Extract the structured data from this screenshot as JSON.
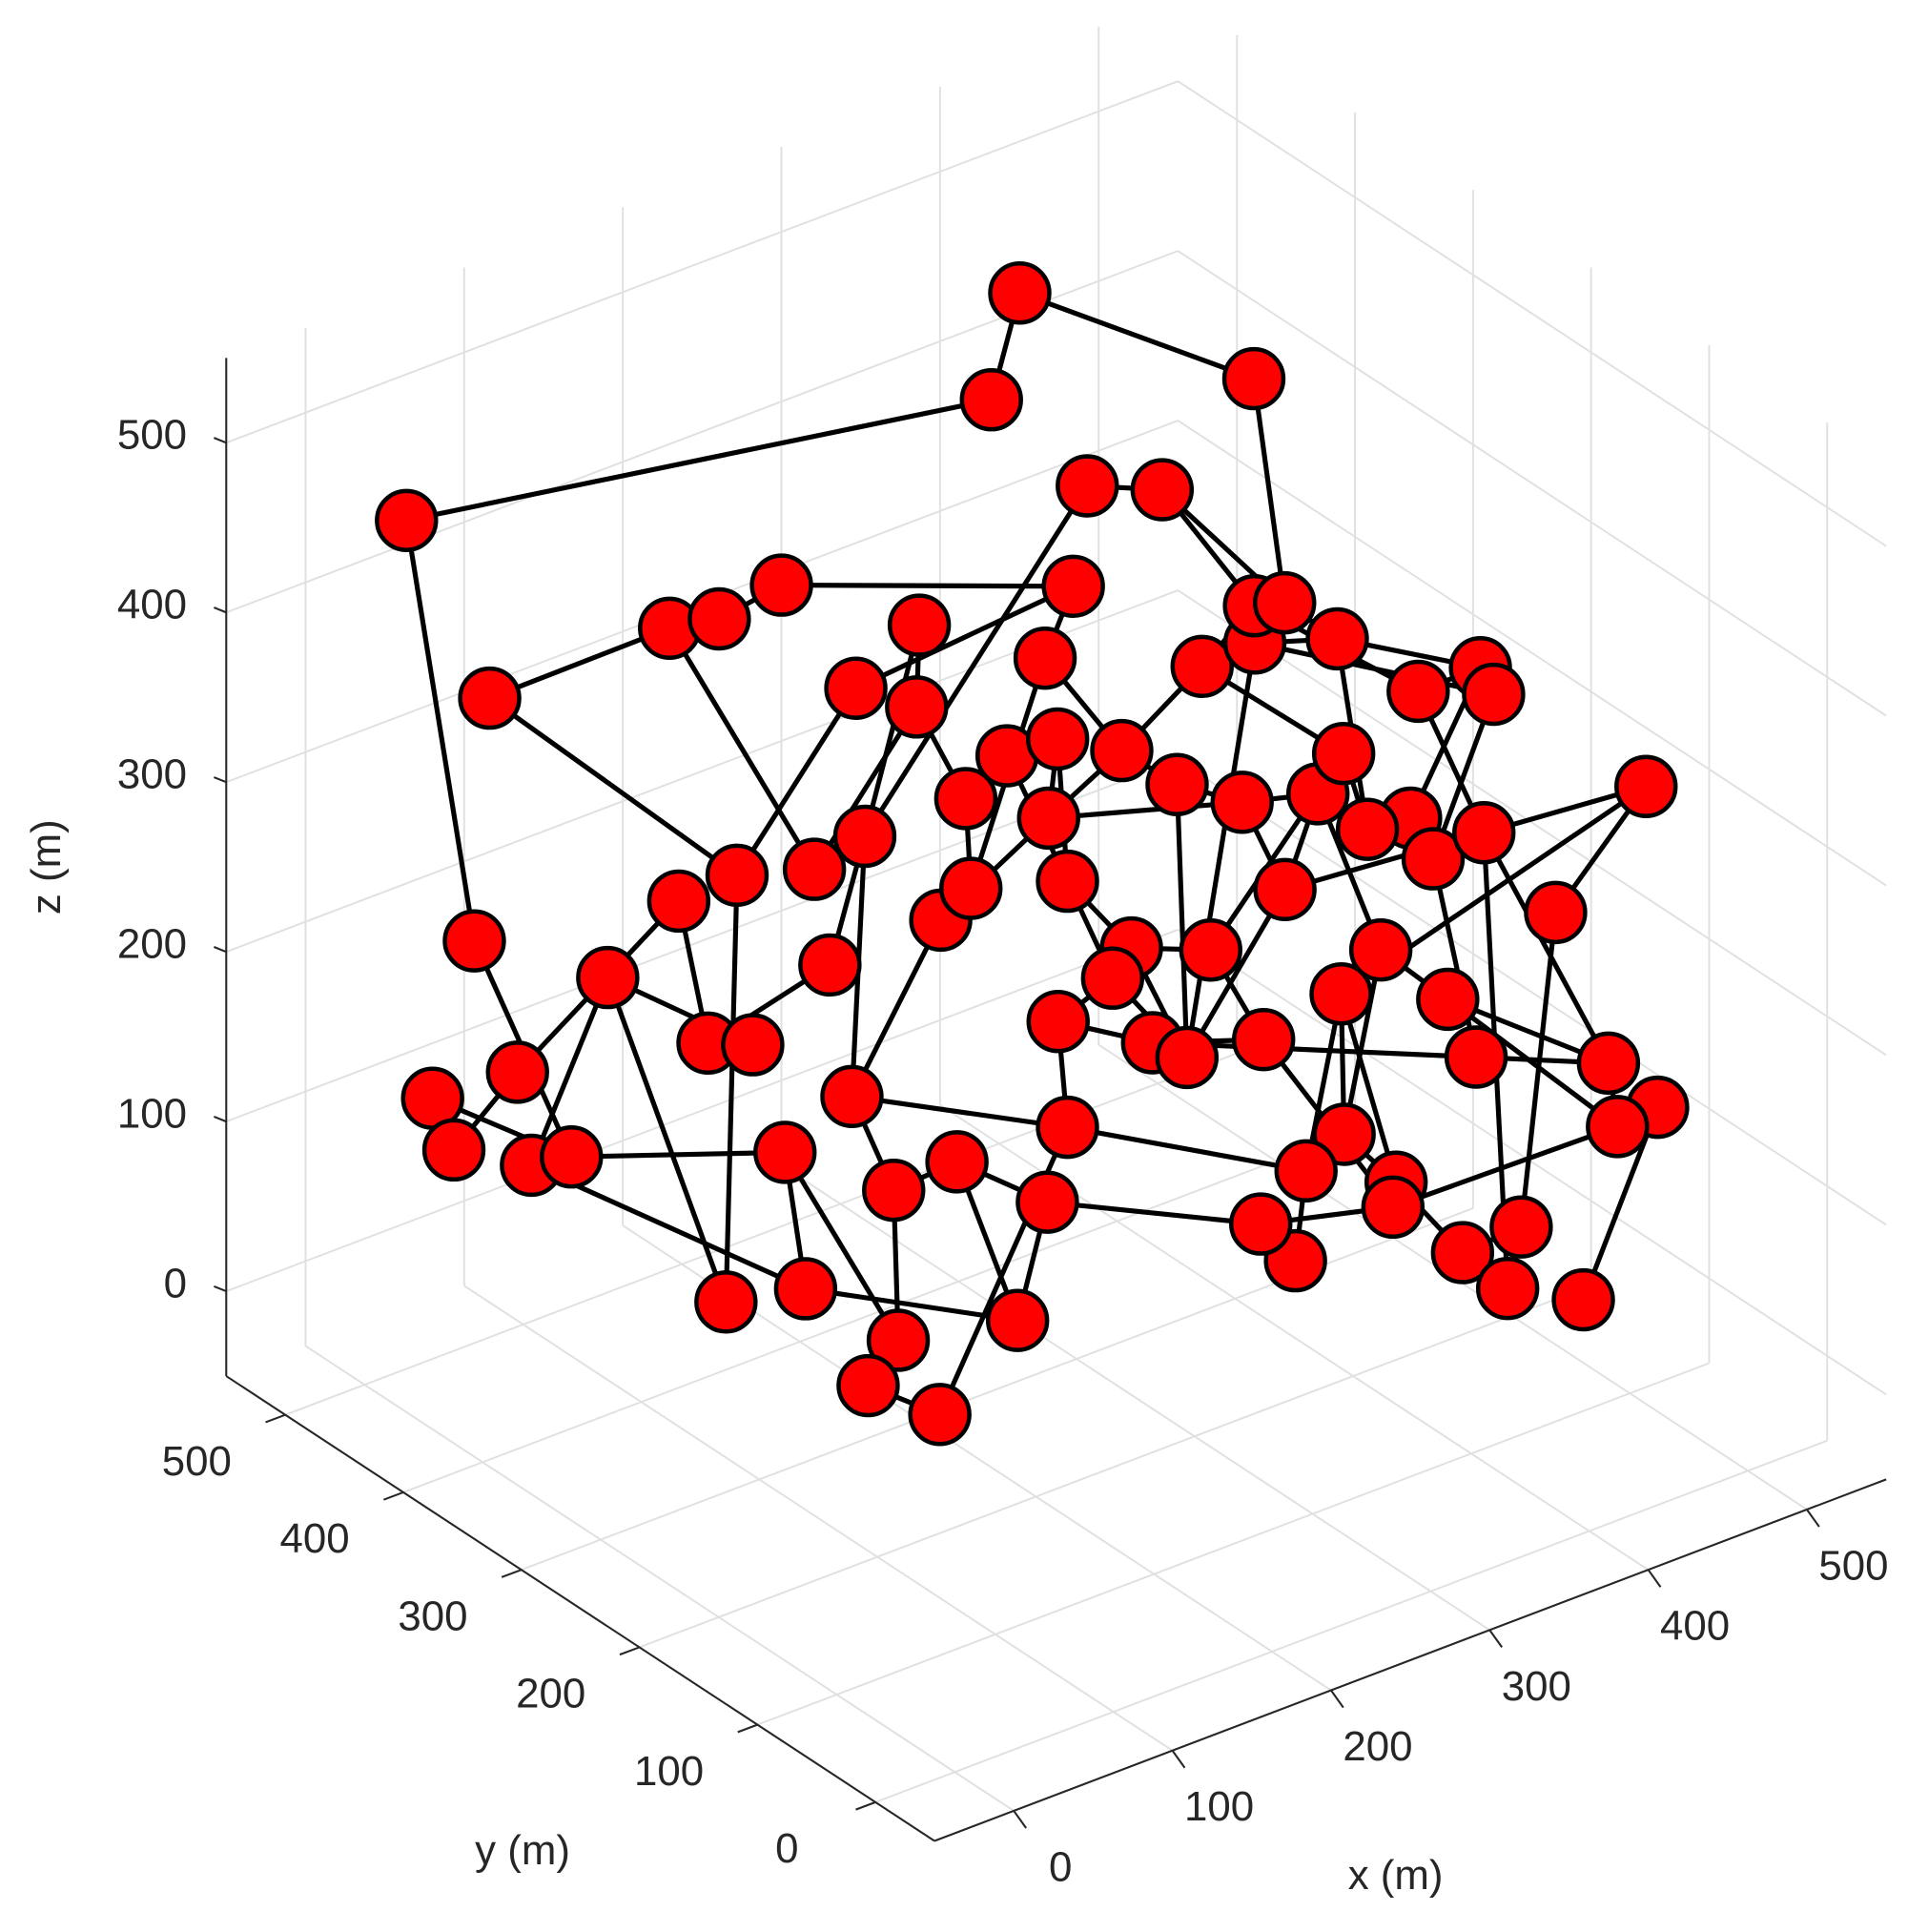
{
  "chart_data": {
    "type": "scatter3d",
    "xlabel": "x (m)",
    "ylabel": "y (m)",
    "zlabel": "z (m)",
    "xlim": [
      -50,
      550
    ],
    "ylim": [
      -50,
      550
    ],
    "zlim": [
      -50,
      550
    ],
    "xticks": [
      0,
      100,
      200,
      300,
      400,
      500
    ],
    "yticks": [
      0,
      100,
      200,
      300,
      400,
      500
    ],
    "zticks": [
      0,
      100,
      200,
      300,
      400,
      500
    ],
    "grid": true,
    "edge_color": "#000000",
    "series": [
      {
        "color": "#ff0000",
        "x": [
          358,
          420,
          323,
          16,
          32,
          28,
          34,
          22,
          68,
          56,
          64,
          64,
          103,
          112,
          114,
          79,
          86,
          90,
          81,
          79,
          92,
          79,
          85,
          107,
          105,
          146,
          186,
          162,
          84,
          88,
          113,
          76,
          57,
          65,
          114,
          170,
          205,
          214,
          140,
          159,
          193,
          219,
          236,
          243,
          298,
          344,
          354,
          208,
          205,
          269,
          289,
          330,
          223,
          226,
          273,
          214,
          258,
          284,
          357,
          415,
          394,
          342,
          338,
          375,
          394,
          390,
          441,
          443,
          429,
          399,
          409,
          376,
          408,
          473,
          416,
          343,
          318,
          348,
          351,
          427,
          458,
          455,
          305,
          281,
          308,
          306,
          372,
          335,
          356,
          400,
          252,
          245
        ],
        "y": [
          426,
          311,
          403,
          486,
          450,
          480,
          470,
          400,
          450,
          400,
          480,
          380,
          380,
          350,
          300,
          340,
          300,
          330,
          280,
          300,
          250,
          250,
          220,
          220,
          260,
          280,
          280,
          250,
          200,
          170,
          150,
          150,
          150,
          100,
          100,
          150,
          180,
          200,
          200,
          200,
          250,
          250,
          230,
          250,
          300,
          350,
          300,
          200,
          180,
          220,
          200,
          200,
          150,
          170,
          150,
          120,
          150,
          120,
          200,
          250,
          200,
          250,
          200,
          250,
          250,
          200,
          200,
          150,
          120,
          150,
          200,
          100,
          100,
          50,
          50,
          100,
          100,
          50,
          30,
          20,
          20,
          50,
          80,
          80,
          40,
          40,
          20,
          20,
          10,
          5,
          50,
          70
        ],
        "z": [
          500,
          480,
          460,
          460,
          223,
          118,
          90,
          172,
          78,
          110,
          341,
          222,
          414,
          430,
          472,
          280,
          311,
          197,
          222,
          62,
          88,
          173,
          295,
          363,
          326,
          409,
          432,
          406,
          227,
          184,
          201,
          109,
          89,
          92,
          130,
          157,
          175,
          225,
          311,
          323,
          341,
          357,
          370,
          406,
          406,
          426,
          443,
          347,
          320,
          356,
          338,
          313,
          288,
          260,
          269,
          249,
          211,
          226,
          252,
          265,
          319,
          366,
          404,
          390,
          385,
          388,
          339,
          375,
          378,
          302,
          269,
          309,
          313,
          340,
          286,
          267,
          250,
          259,
          233,
          207,
          170,
          146,
          181,
          168,
          170,
          156,
          130,
          128,
          104,
          84,
          139,
          154
        ]
      }
    ],
    "edges": [
      [
        0,
        2
      ],
      [
        0,
        1
      ],
      [
        1,
        64
      ],
      [
        2,
        3
      ],
      [
        3,
        4
      ],
      [
        4,
        9
      ],
      [
        10,
        12
      ],
      [
        10,
        16
      ],
      [
        12,
        13
      ],
      [
        13,
        14
      ],
      [
        14,
        44
      ],
      [
        12,
        24
      ],
      [
        19,
        16
      ],
      [
        19,
        11
      ],
      [
        11,
        8
      ],
      [
        5,
        6
      ],
      [
        5,
        9
      ],
      [
        7,
        15
      ],
      [
        9,
        21
      ],
      [
        8,
        20
      ],
      [
        20,
        34
      ],
      [
        21,
        31
      ],
      [
        31,
        29
      ],
      [
        31,
        32
      ],
      [
        29,
        28
      ],
      [
        28,
        38
      ],
      [
        28,
        23
      ],
      [
        33,
        36
      ],
      [
        34,
        30
      ],
      [
        35,
        91
      ],
      [
        36,
        83
      ],
      [
        28,
        36
      ],
      [
        37,
        53
      ],
      [
        37,
        55
      ],
      [
        38,
        47
      ],
      [
        39,
        43
      ],
      [
        40,
        41
      ],
      [
        41,
        42
      ],
      [
        42,
        48
      ],
      [
        43,
        44
      ],
      [
        44,
        25
      ],
      [
        45,
        23
      ],
      [
        45,
        46
      ],
      [
        46,
        64
      ],
      [
        46,
        63
      ],
      [
        47,
        49
      ],
      [
        48,
        52
      ],
      [
        49,
        50
      ],
      [
        50,
        51
      ],
      [
        51,
        59
      ],
      [
        52,
        54
      ],
      [
        53,
        56
      ],
      [
        54,
        60
      ],
      [
        55,
        57
      ],
      [
        56,
        62
      ],
      [
        57,
        85
      ],
      [
        58,
        59
      ],
      [
        58,
        73
      ],
      [
        59,
        75
      ],
      [
        60,
        61
      ],
      [
        61,
        63
      ],
      [
        62,
        65
      ],
      [
        63,
        66
      ],
      [
        65,
        67
      ],
      [
        66,
        67
      ],
      [
        67,
        69
      ],
      [
        68,
        71
      ],
      [
        69,
        70
      ],
      [
        71,
        78
      ],
      [
        72,
        79
      ],
      [
        72,
        88
      ],
      [
        73,
        74
      ],
      [
        74,
        86
      ],
      [
        75,
        77
      ],
      [
        76,
        82
      ],
      [
        77,
        79
      ],
      [
        78,
        79
      ],
      [
        79,
        81
      ],
      [
        80,
        89
      ],
      [
        81,
        85
      ],
      [
        82,
        84
      ],
      [
        83,
        90
      ],
      [
        84,
        87
      ],
      [
        85,
        91
      ],
      [
        86,
        87
      ],
      [
        87,
        88
      ],
      [
        83,
        76
      ],
      [
        17,
        18
      ],
      [
        17,
        22
      ],
      [
        22,
        23
      ],
      [
        23,
        26
      ],
      [
        24,
        27
      ],
      [
        25,
        16
      ],
      [
        26,
        27
      ],
      [
        27,
        40
      ],
      [
        30,
        35
      ],
      [
        38,
        39
      ],
      [
        39,
        40
      ],
      [
        41,
        48
      ],
      [
        42,
        47
      ],
      [
        43,
        49
      ],
      [
        47,
        51
      ],
      [
        48,
        53
      ],
      [
        49,
        61
      ],
      [
        50,
        56
      ],
      [
        51,
        58
      ],
      [
        52,
        56
      ],
      [
        54,
        57
      ],
      [
        55,
        78
      ],
      [
        56,
        58
      ],
      [
        59,
        71
      ],
      [
        60,
        70
      ],
      [
        62,
        68
      ],
      [
        64,
        65
      ],
      [
        65,
        70
      ],
      [
        66,
        72
      ],
      [
        69,
        71
      ],
      [
        73,
        76
      ],
      [
        75,
        82
      ],
      [
        76,
        84
      ],
      [
        77,
        81
      ],
      [
        11,
        18
      ],
      [
        15,
        17
      ],
      [
        20,
        21
      ],
      [
        29,
        30
      ],
      [
        32,
        33
      ],
      [
        34,
        35
      ],
      [
        36,
        37
      ],
      [
        6,
        7
      ]
    ]
  }
}
